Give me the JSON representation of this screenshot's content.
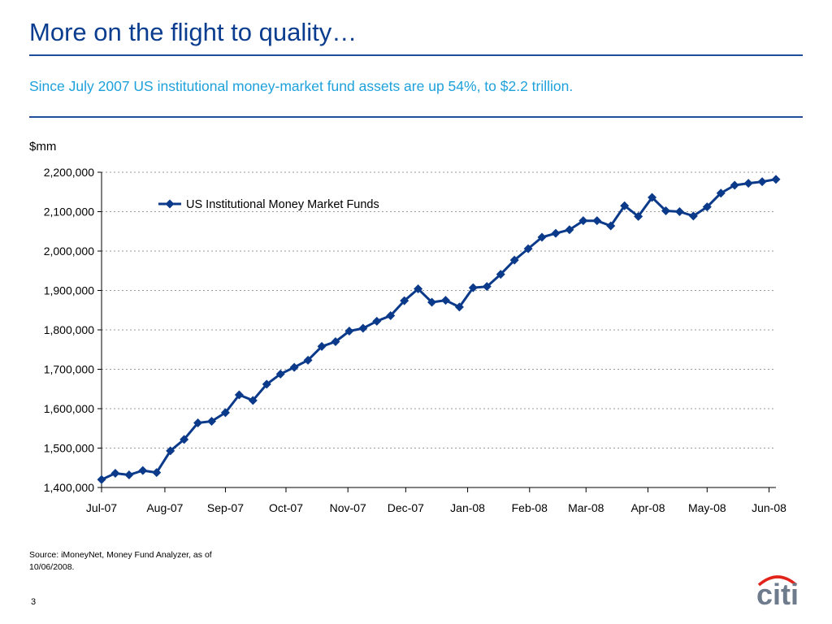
{
  "slide": {
    "title": "More on the flight to quality…",
    "subtitle": "Since July 2007 US institutional money-market fund assets are up 54%, to $2.2 trillion.",
    "unit_label": "$mm",
    "source": "Source:  iMoneyNet, Money Fund Analyzer, as of 10/06/2008.",
    "page_number": "3",
    "logo_text": "citi",
    "colors": {
      "title": "#0a3d8f",
      "subtitle": "#1ea1db",
      "series": "#0b3a8a",
      "logo": "#6d7b8d",
      "logo_arc": "#e2231a"
    }
  },
  "chart_data": {
    "type": "line",
    "ylim": [
      1400000,
      2200000
    ],
    "yticks": [
      1400000,
      1500000,
      1600000,
      1700000,
      1800000,
      1900000,
      2000000,
      2100000,
      2200000
    ],
    "ytick_labels": [
      "1,400,000",
      "1,500,000",
      "1,600,000",
      "1,700,000",
      "1,800,000",
      "1,900,000",
      "2,000,000",
      "2,100,000",
      "2,200,000"
    ],
    "xtick_labels": [
      "Jul-07",
      "Aug-07",
      "Sep-07",
      "Oct-07",
      "Nov-07",
      "Dec-07",
      "Jan-08",
      "Feb-08",
      "Mar-08",
      "Apr-08",
      "May-08",
      "Jun-08"
    ],
    "xtick_positions": [
      0,
      4.6,
      9,
      13.4,
      17.9,
      22.1,
      26.6,
      31.1,
      35.2,
      39.7,
      44,
      48.5
    ],
    "legend": "top-left",
    "grid": "horizontal-dotted",
    "series": [
      {
        "name": "US Institutional Money Market Funds",
        "values": [
          1420000,
          1436000,
          1432000,
          1443000,
          1438000,
          1493000,
          1522000,
          1564000,
          1568000,
          1590000,
          1635000,
          1621000,
          1662000,
          1688000,
          1705000,
          1723000,
          1758000,
          1770000,
          1797000,
          1804000,
          1822000,
          1836000,
          1874000,
          1904000,
          1870000,
          1875000,
          1858000,
          1907000,
          1910000,
          1941000,
          1977000,
          2006000,
          2035000,
          2045000,
          2054000,
          2077000,
          2077000,
          2064000,
          2115000,
          2088000,
          2136000,
          2102000,
          2100000,
          2089000,
          2112000,
          2147000,
          2167000,
          2172000,
          2176000,
          2182000
        ]
      }
    ]
  }
}
